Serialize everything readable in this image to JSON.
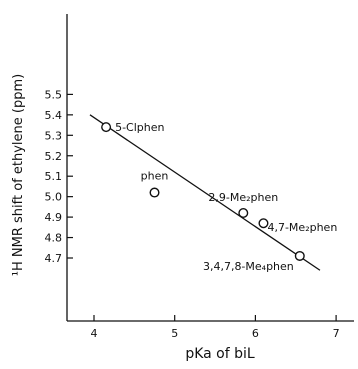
{
  "chart_data": {
    "type": "scatter",
    "title": "",
    "xlabel": "pKa of biL",
    "ylabel": "¹H NMR shift of ethylene (ppm)",
    "xlim": [
      3.5,
      7.3
    ],
    "ylim": [
      4.6,
      5.55
    ],
    "xticks": [
      "4",
      "5",
      "6",
      "7"
    ],
    "yticks": [
      "4.7",
      "4.8",
      "4.9",
      "5.0",
      "5.1",
      "5.2",
      "5.3",
      "5.4",
      "5.5"
    ],
    "points": [
      {
        "label": "5-Clphen",
        "x": 4.15,
        "y": 5.34
      },
      {
        "label": "phen",
        "x": 4.75,
        "y": 5.02
      },
      {
        "label": "2,9-Me₂phen",
        "x": 5.85,
        "y": 4.92
      },
      {
        "label": "4,7-Me₂phen",
        "x": 6.1,
        "y": 4.87
      },
      {
        "label": "3,4,7,8-Me₄phen",
        "x": 6.55,
        "y": 4.71
      }
    ],
    "fit_line": {
      "x": [
        3.95,
        6.8
      ],
      "y": [
        5.4,
        4.64
      ]
    },
    "grid": false,
    "legend": "none"
  }
}
